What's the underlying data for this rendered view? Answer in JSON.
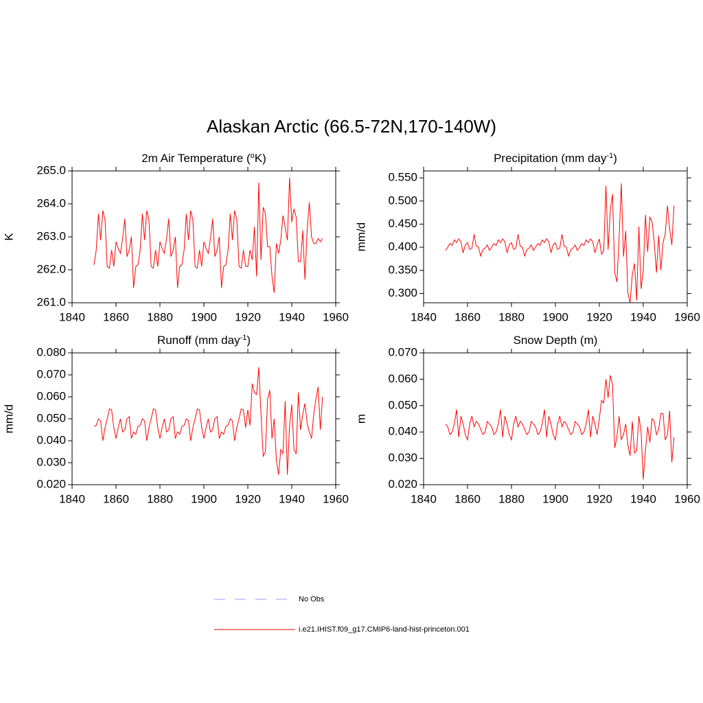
{
  "title": "Alaskan Arctic (66.5-72N,170-140W)",
  "legend": [
    {
      "name": "No Obs",
      "color": "#9999ff",
      "dashed": true
    },
    {
      "name": "i.e21.IHIST.f09_g17.CMIP6-land-hist-princeton.001",
      "color": "#ff0000",
      "dashed": false
    }
  ],
  "chart_data": [
    {
      "type": "line",
      "title": [
        {
          "text": "2m Air Temperature ("
        },
        {
          "text": "o",
          "sup": true
        },
        {
          "text": "K)"
        }
      ],
      "ylabel": "K",
      "color": "#ff0000",
      "x": [
        1850,
        1851,
        1852,
        1853,
        1854,
        1855,
        1856,
        1857,
        1858,
        1859,
        1860,
        1861,
        1862,
        1863,
        1864,
        1865,
        1866,
        1867,
        1868,
        1869,
        1870,
        1871,
        1872,
        1873,
        1874,
        1875,
        1876,
        1877,
        1878,
        1879,
        1880,
        1881,
        1882,
        1883,
        1884,
        1885,
        1886,
        1887,
        1888,
        1889,
        1890,
        1891,
        1892,
        1893,
        1894,
        1895,
        1896,
        1897,
        1898,
        1899,
        1900,
        1901,
        1902,
        1903,
        1904,
        1905,
        1906,
        1907,
        1908,
        1909,
        1910,
        1911,
        1912,
        1913,
        1914,
        1915,
        1916,
        1917,
        1918,
        1919,
        1920,
        1921,
        1922,
        1923,
        1924,
        1925,
        1926,
        1927,
        1928,
        1929,
        1930,
        1931,
        1932,
        1933,
        1934,
        1935,
        1936,
        1937,
        1938,
        1939,
        1940,
        1941,
        1942,
        1943,
        1944,
        1945,
        1946,
        1947,
        1948,
        1949,
        1950,
        1951,
        1952,
        1953,
        1954
      ],
      "values": [
        262.15,
        262.6,
        263.7,
        262.9,
        263.8,
        263.5,
        262.1,
        262.05,
        262.6,
        262.1,
        262.85,
        262.65,
        262.5,
        262.95,
        263.55,
        262.4,
        262.6,
        263.0,
        261.45,
        262.1,
        262.15,
        262.6,
        263.7,
        262.9,
        263.8,
        263.5,
        262.1,
        262.05,
        262.6,
        262.1,
        262.85,
        262.65,
        262.5,
        262.95,
        263.55,
        262.4,
        262.6,
        263.0,
        261.45,
        262.1,
        262.15,
        262.6,
        263.7,
        262.9,
        263.8,
        263.5,
        262.1,
        262.05,
        262.6,
        262.1,
        262.85,
        262.65,
        262.5,
        262.95,
        263.55,
        262.4,
        262.6,
        263.0,
        261.45,
        262.1,
        262.15,
        262.6,
        263.7,
        262.9,
        263.8,
        263.5,
        262.1,
        262.05,
        262.6,
        262.1,
        262.1,
        262.6,
        262.3,
        263.3,
        261.8,
        264.65,
        262.3,
        263.9,
        263.7,
        262.7,
        262.7,
        261.8,
        261.3,
        262.8,
        262.5,
        262.9,
        263.65,
        263.3,
        262.9,
        264.8,
        263.45,
        263.85,
        263.6,
        262.25,
        262.25,
        263.2,
        261.7,
        263.2,
        264.05,
        263.0,
        262.8,
        262.8,
        262.95,
        262.85,
        262.95
      ],
      "xlim": [
        1840,
        1960
      ],
      "xticks": [
        1840,
        1860,
        1880,
        1900,
        1920,
        1940,
        1960
      ],
      "ylim": [
        261,
        265
      ],
      "yticks": [
        {
          "value": 261,
          "label": "261.0"
        },
        {
          "value": 262,
          "label": "262.0"
        },
        {
          "value": 263,
          "label": "263.0"
        },
        {
          "value": 264,
          "label": "264.0"
        },
        {
          "value": 265,
          "label": "265.0"
        }
      ]
    },
    {
      "type": "line",
      "title": [
        {
          "text": "Precipitation (mm day"
        },
        {
          "text": "-1",
          "sup": true
        },
        {
          "text": ")"
        }
      ],
      "ylabel": "mm/d",
      "color": "#ff0000",
      "x": [
        1850,
        1851,
        1852,
        1853,
        1854,
        1855,
        1856,
        1857,
        1858,
        1859,
        1860,
        1861,
        1862,
        1863,
        1864,
        1865,
        1866,
        1867,
        1868,
        1869,
        1870,
        1871,
        1872,
        1873,
        1874,
        1875,
        1876,
        1877,
        1878,
        1879,
        1880,
        1881,
        1882,
        1883,
        1884,
        1885,
        1886,
        1887,
        1888,
        1889,
        1890,
        1891,
        1892,
        1893,
        1894,
        1895,
        1896,
        1897,
        1898,
        1899,
        1900,
        1901,
        1902,
        1903,
        1904,
        1905,
        1906,
        1907,
        1908,
        1909,
        1910,
        1911,
        1912,
        1913,
        1914,
        1915,
        1916,
        1917,
        1918,
        1919,
        1920,
        1921,
        1922,
        1923,
        1924,
        1925,
        1926,
        1927,
        1928,
        1929,
        1930,
        1931,
        1932,
        1933,
        1934,
        1935,
        1936,
        1937,
        1938,
        1939,
        1940,
        1941,
        1942,
        1943,
        1944,
        1945,
        1946,
        1947,
        1948,
        1949,
        1950,
        1951,
        1952,
        1953,
        1954
      ],
      "values": [
        0.393,
        0.4,
        0.408,
        0.404,
        0.416,
        0.41,
        0.418,
        0.412,
        0.388,
        0.405,
        0.41,
        0.395,
        0.398,
        0.428,
        0.402,
        0.4,
        0.381,
        0.395,
        0.398,
        0.405,
        0.393,
        0.4,
        0.408,
        0.404,
        0.416,
        0.41,
        0.418,
        0.412,
        0.388,
        0.405,
        0.41,
        0.395,
        0.398,
        0.428,
        0.402,
        0.4,
        0.381,
        0.395,
        0.398,
        0.405,
        0.393,
        0.4,
        0.408,
        0.404,
        0.416,
        0.41,
        0.418,
        0.412,
        0.388,
        0.405,
        0.41,
        0.395,
        0.398,
        0.428,
        0.402,
        0.4,
        0.381,
        0.395,
        0.398,
        0.405,
        0.393,
        0.4,
        0.408,
        0.404,
        0.416,
        0.41,
        0.418,
        0.412,
        0.388,
        0.405,
        0.418,
        0.385,
        0.392,
        0.533,
        0.395,
        0.48,
        0.515,
        0.345,
        0.325,
        0.42,
        0.538,
        0.38,
        0.435,
        0.3,
        0.28,
        0.34,
        0.365,
        0.285,
        0.445,
        0.31,
        0.35,
        0.47,
        0.39,
        0.465,
        0.455,
        0.41,
        0.345,
        0.425,
        0.35,
        0.41,
        0.43,
        0.49,
        0.44,
        0.405,
        0.49
      ],
      "xlim": [
        1840,
        1960
      ],
      "xticks": [
        1840,
        1860,
        1880,
        1900,
        1920,
        1940,
        1960
      ],
      "ylim": [
        0.28,
        0.565
      ],
      "yticks": [
        {
          "value": 0.3,
          "label": "0.300"
        },
        {
          "value": 0.35,
          "label": "0.350"
        },
        {
          "value": 0.4,
          "label": "0.400"
        },
        {
          "value": 0.45,
          "label": "0.450"
        },
        {
          "value": 0.5,
          "label": "0.500"
        },
        {
          "value": 0.55,
          "label": "0.550"
        }
      ]
    },
    {
      "type": "line",
      "title": [
        {
          "text": "Runoff (mm day"
        },
        {
          "text": "-1",
          "sup": true
        },
        {
          "text": ")"
        }
      ],
      "ylabel": "mm/d",
      "color": "#ff0000",
      "x": [
        1850,
        1851,
        1852,
        1853,
        1854,
        1855,
        1856,
        1857,
        1858,
        1859,
        1860,
        1861,
        1862,
        1863,
        1864,
        1865,
        1866,
        1867,
        1868,
        1869,
        1870,
        1871,
        1872,
        1873,
        1874,
        1875,
        1876,
        1877,
        1878,
        1879,
        1880,
        1881,
        1882,
        1883,
        1884,
        1885,
        1886,
        1887,
        1888,
        1889,
        1890,
        1891,
        1892,
        1893,
        1894,
        1895,
        1896,
        1897,
        1898,
        1899,
        1900,
        1901,
        1902,
        1903,
        1904,
        1905,
        1906,
        1907,
        1908,
        1909,
        1910,
        1911,
        1912,
        1913,
        1914,
        1915,
        1916,
        1917,
        1918,
        1919,
        1920,
        1921,
        1922,
        1923,
        1924,
        1925,
        1926,
        1927,
        1928,
        1929,
        1930,
        1931,
        1932,
        1933,
        1934,
        1935,
        1936,
        1937,
        1938,
        1939,
        1940,
        1941,
        1942,
        1943,
        1944,
        1945,
        1946,
        1947,
        1948,
        1949,
        1950,
        1951,
        1952,
        1953,
        1954
      ],
      "values": [
        0.0465,
        0.047,
        0.05,
        0.049,
        0.04,
        0.046,
        0.05,
        0.0545,
        0.054,
        0.046,
        0.041,
        0.046,
        0.05,
        0.044,
        0.045,
        0.05,
        0.051,
        0.041,
        0.044,
        0.043,
        0.0465,
        0.047,
        0.05,
        0.049,
        0.04,
        0.046,
        0.05,
        0.0545,
        0.054,
        0.046,
        0.041,
        0.046,
        0.05,
        0.044,
        0.045,
        0.05,
        0.051,
        0.041,
        0.044,
        0.043,
        0.0465,
        0.047,
        0.05,
        0.049,
        0.04,
        0.046,
        0.05,
        0.0545,
        0.054,
        0.046,
        0.041,
        0.046,
        0.05,
        0.044,
        0.045,
        0.05,
        0.051,
        0.041,
        0.044,
        0.043,
        0.0465,
        0.047,
        0.05,
        0.049,
        0.04,
        0.046,
        0.05,
        0.0545,
        0.054,
        0.046,
        0.054,
        0.047,
        0.066,
        0.062,
        0.061,
        0.0735,
        0.052,
        0.033,
        0.035,
        0.059,
        0.063,
        0.041,
        0.05,
        0.031,
        0.0245,
        0.036,
        0.034,
        0.058,
        0.0245,
        0.047,
        0.0565,
        0.036,
        0.034,
        0.062,
        0.045,
        0.052,
        0.057,
        0.048,
        0.044,
        0.041,
        0.052,
        0.059,
        0.0645,
        0.045,
        0.06
      ],
      "xlim": [
        1840,
        1960
      ],
      "xticks": [
        1840,
        1860,
        1880,
        1900,
        1920,
        1940,
        1960
      ],
      "ylim": [
        0.02,
        0.08
      ],
      "yticks": [
        {
          "value": 0.02,
          "label": "0.020"
        },
        {
          "value": 0.03,
          "label": "0.030"
        },
        {
          "value": 0.04,
          "label": "0.040"
        },
        {
          "value": 0.05,
          "label": "0.050"
        },
        {
          "value": 0.06,
          "label": "0.060"
        },
        {
          "value": 0.07,
          "label": "0.070"
        },
        {
          "value": 0.08,
          "label": "0.080"
        }
      ]
    },
    {
      "type": "line",
      "title": [
        {
          "text": "Snow Depth (m)"
        }
      ],
      "ylabel": "m",
      "color": "#ff0000",
      "x": [
        1850,
        1851,
        1852,
        1853,
        1854,
        1855,
        1856,
        1857,
        1858,
        1859,
        1860,
        1861,
        1862,
        1863,
        1864,
        1865,
        1866,
        1867,
        1868,
        1869,
        1870,
        1871,
        1872,
        1873,
        1874,
        1875,
        1876,
        1877,
        1878,
        1879,
        1880,
        1881,
        1882,
        1883,
        1884,
        1885,
        1886,
        1887,
        1888,
        1889,
        1890,
        1891,
        1892,
        1893,
        1894,
        1895,
        1896,
        1897,
        1898,
        1899,
        1900,
        1901,
        1902,
        1903,
        1904,
        1905,
        1906,
        1907,
        1908,
        1909,
        1910,
        1911,
        1912,
        1913,
        1914,
        1915,
        1916,
        1917,
        1918,
        1919,
        1920,
        1921,
        1922,
        1923,
        1924,
        1925,
        1926,
        1927,
        1928,
        1929,
        1930,
        1931,
        1932,
        1933,
        1934,
        1935,
        1936,
        1937,
        1938,
        1939,
        1940,
        1941,
        1942,
        1943,
        1944,
        1945,
        1946,
        1947,
        1948,
        1949,
        1950,
        1951,
        1952,
        1953,
        1954
      ],
      "values": [
        0.043,
        0.042,
        0.039,
        0.04,
        0.043,
        0.0485,
        0.038,
        0.046,
        0.043,
        0.039,
        0.037,
        0.043,
        0.046,
        0.042,
        0.044,
        0.043,
        0.041,
        0.039,
        0.04,
        0.044,
        0.043,
        0.042,
        0.039,
        0.04,
        0.043,
        0.0485,
        0.038,
        0.046,
        0.043,
        0.039,
        0.037,
        0.043,
        0.046,
        0.042,
        0.044,
        0.043,
        0.041,
        0.039,
        0.04,
        0.044,
        0.043,
        0.042,
        0.039,
        0.04,
        0.043,
        0.0485,
        0.038,
        0.046,
        0.043,
        0.039,
        0.037,
        0.043,
        0.046,
        0.042,
        0.044,
        0.043,
        0.041,
        0.039,
        0.04,
        0.044,
        0.043,
        0.042,
        0.039,
        0.04,
        0.043,
        0.0485,
        0.038,
        0.046,
        0.043,
        0.039,
        0.045,
        0.052,
        0.051,
        0.06,
        0.053,
        0.0615,
        0.058,
        0.034,
        0.038,
        0.046,
        0.037,
        0.039,
        0.043,
        0.035,
        0.031,
        0.044,
        0.032,
        0.033,
        0.046,
        0.04,
        0.022,
        0.033,
        0.042,
        0.036,
        0.045,
        0.044,
        0.039,
        0.041,
        0.047,
        0.047,
        0.037,
        0.039,
        0.048,
        0.0285,
        0.038
      ],
      "xlim": [
        1840,
        1960
      ],
      "xticks": [
        1840,
        1860,
        1880,
        1900,
        1920,
        1940,
        1960
      ],
      "ylim": [
        0.02,
        0.07
      ],
      "yticks": [
        {
          "value": 0.02,
          "label": "0.020"
        },
        {
          "value": 0.03,
          "label": "0.030"
        },
        {
          "value": 0.04,
          "label": "0.040"
        },
        {
          "value": 0.05,
          "label": "0.050"
        },
        {
          "value": 0.06,
          "label": "0.060"
        },
        {
          "value": 0.07,
          "label": "0.070"
        }
      ]
    }
  ]
}
